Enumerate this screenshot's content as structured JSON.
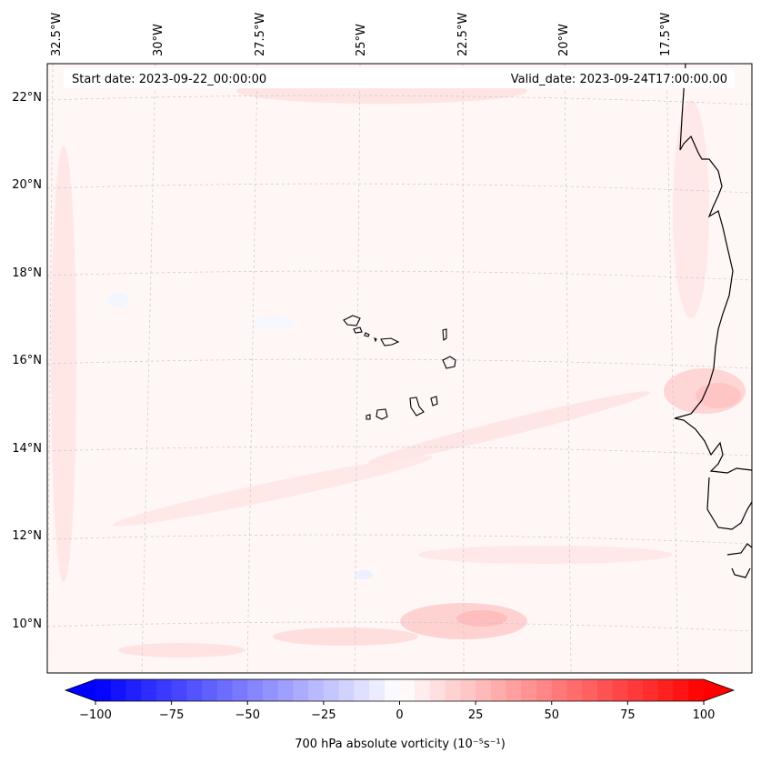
{
  "map": {
    "start_label": "Start date: 2023-09-22_00:00:00",
    "valid_label": "Valid_date: 2023-09-24T17:00:00.00",
    "lon_labels": [
      "32.5°W",
      "30°W",
      "27.5°W",
      "25°W",
      "22.5°W",
      "20°W",
      "17.5°W"
    ],
    "lat_labels": [
      "22°N",
      "20°N",
      "18°N",
      "16°N",
      "14°N",
      "12°N",
      "10°N"
    ]
  },
  "colorbar": {
    "label": "700 hPa absolute vorticity (10⁻⁵s⁻¹)",
    "ticks": [
      "−100",
      "−75",
      "−50",
      "−25",
      "0",
      "25",
      "50",
      "75",
      "100"
    ],
    "min": -100,
    "max": 100,
    "neg_color": "#0000ff",
    "pos_color": "#ff0000"
  },
  "colors": {
    "background_field": "#fff5f5",
    "coastline": "#000000",
    "gridline": "#cccccc"
  }
}
